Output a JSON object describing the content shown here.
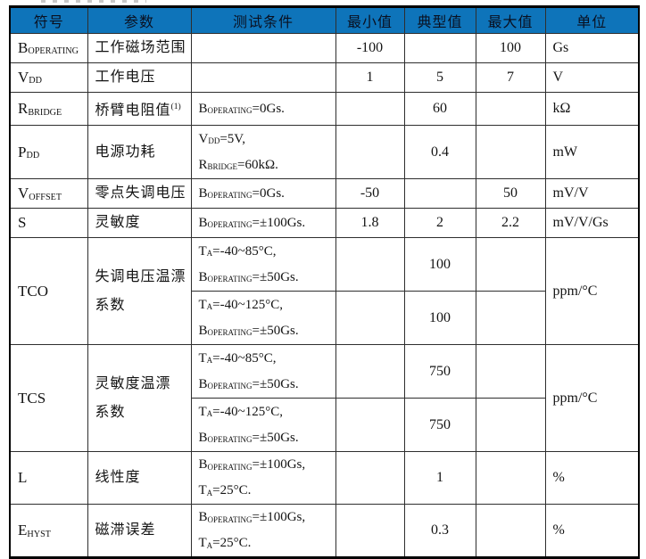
{
  "colors": {
    "header_bg": "#0e74ba",
    "header_text": "#0a1020",
    "inner_border": "#2e2e2e",
    "outer_border": "#000000",
    "body_text": "#141414",
    "page_bg": "#ffffff"
  },
  "table": {
    "columns": [
      {
        "id": "symbol",
        "label": "符号",
        "align": "left",
        "width": 87
      },
      {
        "id": "param",
        "label": "参数",
        "align": "left",
        "width": 116
      },
      {
        "id": "cond",
        "label": "测试条件",
        "align": "left",
        "width": 162
      },
      {
        "id": "min",
        "label": "最小值",
        "align": "center",
        "width": 77
      },
      {
        "id": "typ",
        "label": "典型值",
        "align": "center",
        "width": 80
      },
      {
        "id": "max",
        "label": "最大值",
        "align": "center",
        "width": 78
      },
      {
        "id": "unit",
        "label": "单位",
        "align": "left",
        "width": 105
      }
    ],
    "rows": [
      {
        "h": 30,
        "cells": [
          {
            "col": "symbol",
            "text": "B_{OPERATING}"
          },
          {
            "col": "param",
            "text": "工作磁场范围"
          },
          {
            "col": "cond",
            "text": ""
          },
          {
            "col": "min",
            "text": "-100"
          },
          {
            "col": "typ",
            "text": ""
          },
          {
            "col": "max",
            "text": "100"
          },
          {
            "col": "unit",
            "text": "Gs"
          }
        ]
      },
      {
        "h": 30,
        "cells": [
          {
            "col": "symbol",
            "text": "V_{DD}"
          },
          {
            "col": "param",
            "text": "工作电压"
          },
          {
            "col": "cond",
            "text": ""
          },
          {
            "col": "min",
            "text": "1"
          },
          {
            "col": "typ",
            "text": "5"
          },
          {
            "col": "max",
            "text": "7"
          },
          {
            "col": "unit",
            "text": "V"
          }
        ]
      },
      {
        "h": 30,
        "cells": [
          {
            "col": "symbol",
            "text": "R_{BRIDGE}"
          },
          {
            "col": "param",
            "text": "桥臂电阻值^{(1)}"
          },
          {
            "col": "cond",
            "text": "B_{OPERATING}=0Gs."
          },
          {
            "col": "min",
            "text": ""
          },
          {
            "col": "typ",
            "text": "60"
          },
          {
            "col": "max",
            "text": ""
          },
          {
            "col": "unit",
            "text": "kΩ"
          }
        ]
      },
      {
        "h": 60,
        "cells": [
          {
            "col": "symbol",
            "text": "P_{DD}"
          },
          {
            "col": "param",
            "text": "电源功耗"
          },
          {
            "col": "cond",
            "text": "V_{DD}=5V,\nR_{BRIDGE}=60kΩ."
          },
          {
            "col": "min",
            "text": ""
          },
          {
            "col": "typ",
            "text": "0.4"
          },
          {
            "col": "max",
            "text": ""
          },
          {
            "col": "unit",
            "text": "mW"
          }
        ]
      },
      {
        "h": 30,
        "cells": [
          {
            "col": "symbol",
            "text": "V_{OFFSET}"
          },
          {
            "col": "param",
            "text": "零点失调电压"
          },
          {
            "col": "cond",
            "text": "B_{OPERATING}=0Gs."
          },
          {
            "col": "min",
            "text": "-50"
          },
          {
            "col": "typ",
            "text": ""
          },
          {
            "col": "max",
            "text": "50"
          },
          {
            "col": "unit",
            "text": "mV/V"
          }
        ]
      },
      {
        "h": 30,
        "cells": [
          {
            "col": "symbol",
            "text": "S"
          },
          {
            "col": "param",
            "text": "灵敏度"
          },
          {
            "col": "cond",
            "text": "B_{OPERATING}=±100Gs."
          },
          {
            "col": "min",
            "text": "1.8"
          },
          {
            "col": "typ",
            "text": "2"
          },
          {
            "col": "max",
            "text": "2.2"
          },
          {
            "col": "unit",
            "text": "mV/V/Gs"
          }
        ]
      },
      {
        "h": 60,
        "cells": [
          {
            "col": "symbol",
            "text": "TCO",
            "rowspan": 2
          },
          {
            "col": "param",
            "text": "失调电压温漂\n系数",
            "rowspan": 2
          },
          {
            "col": "cond",
            "text": "T_{A}=-40~85°C,\nB_{OPERATING}=±50Gs."
          },
          {
            "col": "min",
            "text": ""
          },
          {
            "col": "typ",
            "text": "100"
          },
          {
            "col": "max",
            "text": ""
          },
          {
            "col": "unit",
            "text": "ppm/°C",
            "rowspan": 2
          }
        ]
      },
      {
        "h": 60,
        "cells": [
          {
            "col": "cond",
            "text": "T_{A}=-40~125°C,\nB_{OPERATING}=±50Gs."
          },
          {
            "col": "min",
            "text": ""
          },
          {
            "col": "typ",
            "text": "100"
          },
          {
            "col": "max",
            "text": ""
          }
        ]
      },
      {
        "h": 60,
        "cells": [
          {
            "col": "symbol",
            "text": "TCS",
            "rowspan": 2
          },
          {
            "col": "param",
            "text": "灵敏度温漂\n系数",
            "rowspan": 2
          },
          {
            "col": "cond",
            "text": "T_{A}=-40~85°C,\nB_{OPERATING}=±50Gs."
          },
          {
            "col": "min",
            "text": ""
          },
          {
            "col": "typ",
            "text": "750"
          },
          {
            "col": "max",
            "text": ""
          },
          {
            "col": "unit",
            "text": "ppm/°C",
            "rowspan": 2
          }
        ]
      },
      {
        "h": 60,
        "cells": [
          {
            "col": "cond",
            "text": "T_{A}=-40~125°C,\nB_{OPERATING}=±50Gs."
          },
          {
            "col": "min",
            "text": ""
          },
          {
            "col": "typ",
            "text": "750"
          },
          {
            "col": "max",
            "text": ""
          }
        ]
      },
      {
        "h": 58,
        "cells": [
          {
            "col": "symbol",
            "text": "L"
          },
          {
            "col": "param",
            "text": "线性度"
          },
          {
            "col": "cond",
            "text": "B_{OPERATING}=±100Gs,\nT_{A}=25°C."
          },
          {
            "col": "min",
            "text": ""
          },
          {
            "col": "typ",
            "text": "1"
          },
          {
            "col": "max",
            "text": ""
          },
          {
            "col": "unit",
            "text": "%"
          }
        ]
      },
      {
        "h": 56,
        "cells": [
          {
            "col": "symbol",
            "text": "E_{HYST}"
          },
          {
            "col": "param",
            "text": "磁滞误差"
          },
          {
            "col": "cond",
            "text": "B_{OPERATING}=±100Gs,\nT_{A}=25°C."
          },
          {
            "col": "min",
            "text": ""
          },
          {
            "col": "typ",
            "text": "0.3"
          },
          {
            "col": "max",
            "text": ""
          },
          {
            "col": "unit",
            "text": "%"
          }
        ]
      }
    ]
  }
}
